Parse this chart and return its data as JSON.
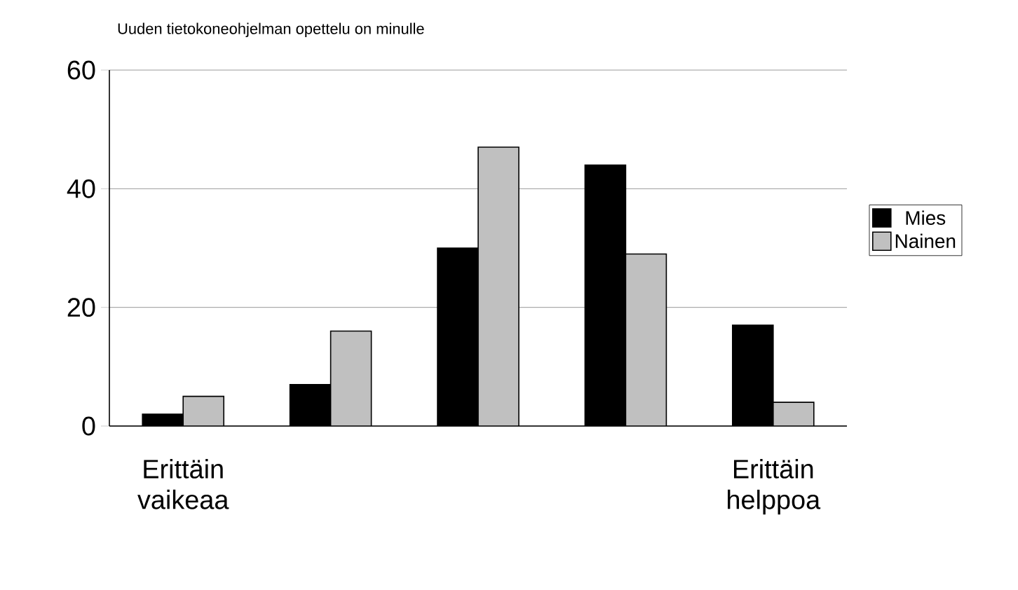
{
  "chart_data": {
    "type": "bar",
    "title": "Uuden tietokoneohjelman opettelu on minulle",
    "categories": [
      "Erittäin vaikeaa",
      null,
      null,
      null,
      "Erittäin helppoa"
    ],
    "series": [
      {
        "name": "Mies",
        "color": "#000000",
        "values": [
          2,
          7,
          30,
          44,
          17
        ]
      },
      {
        "name": "Nainen",
        "color": "#c0c0c0",
        "values": [
          5,
          16,
          47,
          29,
          4
        ]
      }
    ],
    "ylim": [
      0,
      60
    ],
    "yticks": [
      0,
      20,
      40,
      60
    ],
    "grid": "y",
    "legend": "right"
  }
}
